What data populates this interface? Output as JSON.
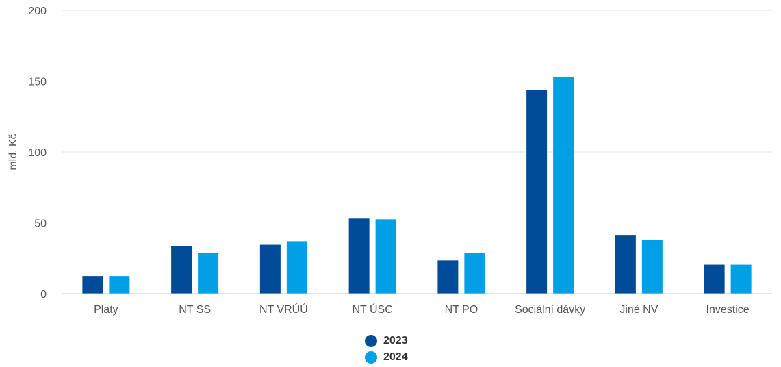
{
  "chart_data": {
    "type": "bar",
    "categories": [
      "Platy",
      "NT SS",
      "NT VRÚÚ",
      "NT ÚSC",
      "NT PO",
      "Sociální dávky",
      "Jiné NV",
      "Investice"
    ],
    "series": [
      {
        "name": "2023",
        "color": "#004c99",
        "values": [
          12.5,
          33.5,
          34.5,
          53,
          23.5,
          143.5,
          41.5,
          20.5
        ]
      },
      {
        "name": "2024",
        "color": "#00a0e6",
        "values": [
          12.5,
          29,
          37,
          52.5,
          29,
          153,
          38,
          20.5
        ]
      }
    ],
    "ylabel": "mld. Kč",
    "ylim": [
      0,
      200
    ],
    "yticks": [
      0,
      50,
      100,
      150,
      200
    ],
    "grid": true,
    "legend_position": "bottom"
  }
}
